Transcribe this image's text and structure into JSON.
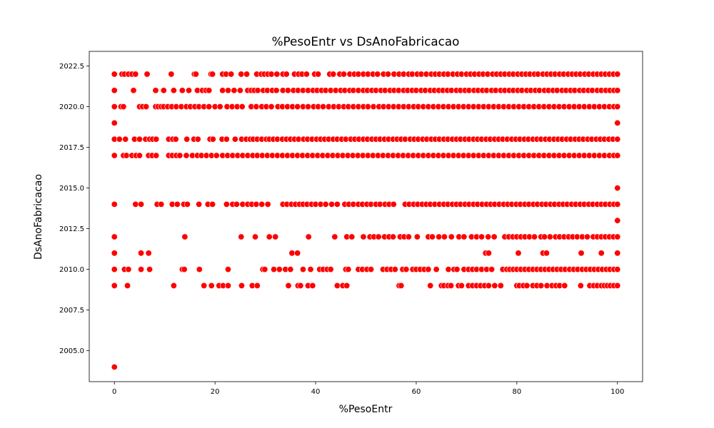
{
  "chart_data": {
    "type": "scatter",
    "title": "%PesoEntr vs DsAnoFabricacao",
    "xlabel": "%PesoEntr",
    "ylabel": "DsAnoFabricacao",
    "xlim": [
      -5,
      105
    ],
    "ylim": [
      2003.1,
      2023.4
    ],
    "xticks": [
      0,
      20,
      40,
      60,
      80,
      100
    ],
    "yticks": [
      2005.0,
      2007.5,
      2010.0,
      2012.5,
      2015.0,
      2017.5,
      2020.0,
      2022.5
    ],
    "ytick_labels": [
      "2005.0",
      "2007.5",
      "2010.0",
      "2012.5",
      "2015.0",
      "2017.5",
      "2020.0",
      "2022.5"
    ],
    "grid": false,
    "legend": "none",
    "marker_color": "#ff0000",
    "marker_edge": "#ffffff",
    "series": [
      {
        "values": [
          {
            "y": 2022,
            "x": [
              0,
              1.5,
              2,
              2.8,
              3.5,
              4.2,
              6.5,
              11.3,
              15.9,
              16.2,
              19.2,
              19.5,
              21.5,
              22.2,
              23.2,
              25.2,
              26.3,
              28.3,
              29.2,
              29.8,
              30.5,
              31.2,
              32.3,
              33.5,
              34.2,
              35.8,
              36.6,
              37.3,
              38.2,
              39.8,
              40.5,
              42.8,
              43.5,
              44.8,
              45.6,
              46.8,
              47.7,
              48.5,
              49.5,
              50.4,
              51.4,
              52.3,
              53.5,
              54.4,
              55.6,
              56.6,
              57.5,
              58.5,
              59.2,
              60.2,
              61,
              62,
              63,
              63.8,
              64.6,
              65.5,
              66.3,
              67.3,
              68.2,
              69,
              70,
              70.8,
              71.6,
              72.5,
              73.3,
              74.2,
              75.2,
              76,
              76.8,
              77.6,
              78.5,
              79.3,
              80.2,
              81,
              81.8,
              82.6,
              83.5,
              84.2,
              85.2,
              86,
              86.8,
              87.6,
              88.5,
              89.3,
              90.2,
              91,
              91.8,
              92.6,
              93.5,
              94.3,
              95.2,
              96,
              96.8,
              97.6,
              98.4,
              99.2,
              100
            ]
          },
          {
            "y": 2021,
            "x": [
              0,
              3.8,
              8.2,
              9.8,
              11.8,
              13.5,
              14.8,
              16.5,
              17.5,
              18.2,
              18.8,
              21.5,
              22.6,
              23.8,
              25,
              26.5,
              27.2,
              27.8,
              28.5,
              29.6,
              30.4,
              31.4,
              32.2,
              33.5,
              34.5,
              35.6,
              36.5,
              37.5,
              38.5,
              39.5,
              40.3,
              41.2,
              42,
              43,
              44,
              45,
              45.8,
              46.8,
              47.5,
              48.5,
              49.5,
              50.3,
              51.2,
              52,
              53,
              53.8,
              54.8,
              55.6,
              56.5,
              57.5,
              58.3,
              59.2,
              60,
              61,
              61.8,
              62.8,
              63.6,
              64.5,
              65.3,
              66.2,
              67,
              68,
              68.8,
              69.7,
              70.5,
              71.5,
              72.3,
              73.2,
              74,
              75,
              75.8,
              76.8,
              77.6,
              78.5,
              79.3,
              80.2,
              81,
              82,
              82.8,
              83.7,
              84.5,
              85.5,
              86.3,
              87.2,
              88,
              89,
              89.8,
              90.7,
              91.5,
              92.5,
              93.3,
              94.2,
              95,
              96,
              96.8,
              97.7,
              98.5,
              99.3,
              100
            ]
          },
          {
            "y": 2020,
            "x": [
              0,
              1.3,
              1.8,
              5,
              5.6,
              6.3,
              8.2,
              8.7,
              9.3,
              9.8,
              10.6,
              11.4,
              12.3,
              13.3,
              14.3,
              15.1,
              16,
              16.8,
              17.8,
              18.8,
              20,
              21,
              22.4,
              23.4,
              24.4,
              25.4,
              27.2,
              28.2,
              29.3,
              30.2,
              31.2,
              32.5,
              33.4,
              34.4,
              35.4,
              36.4,
              37.5,
              38.5,
              39.6,
              40.5,
              41.5,
              42.6,
              43.6,
              44.6,
              45.6,
              46.5,
              47.5,
              48.5,
              49.5,
              50.4,
              51.5,
              52.6,
              53.5,
              54.5,
              55.5,
              56.5,
              57.5,
              58.5,
              59.5,
              60.4,
              61.4,
              62.4,
              63.4,
              64.4,
              65.4,
              66.4,
              67.4,
              68.4,
              69.4,
              70.4,
              71.4,
              72.4,
              73.4,
              74.4,
              75.4,
              76.4,
              77.4,
              78.4,
              79.4,
              80.4,
              81.4,
              82.4,
              83.4,
              84.4,
              85.4,
              86.4,
              87.4,
              88.4,
              89.4,
              90.4,
              91.4,
              92.4,
              93.4,
              94.4,
              95.4,
              96.4,
              97.4,
              98.4,
              99.3,
              100
            ]
          },
          {
            "y": 2019,
            "x": [
              0,
              100
            ]
          },
          {
            "y": 2018,
            "x": [
              0,
              1,
              2.2,
              4,
              5,
              6.2,
              7,
              7.6,
              8.3,
              10.8,
              11.6,
              12.2,
              14.4,
              15.8,
              16.6,
              19,
              19.6,
              21.4,
              22.3,
              24,
              25.3,
              26.2,
              27,
              27.6,
              28.4,
              29.3,
              30.2,
              30.8,
              31.6,
              32.4,
              33.4,
              34.2,
              35,
              35.8,
              36.6,
              37.6,
              38.4,
              39.3,
              40.2,
              41,
              41.8,
              42.6,
              43.5,
              44.3,
              45.2,
              46,
              47,
              47.8,
              48.6,
              49.5,
              50.3,
              51.2,
              52,
              52.8,
              53.7,
              54.5,
              55.4,
              56.2,
              57,
              57.8,
              58.8,
              59.6,
              60.4,
              61.3,
              62.1,
              63,
              63.8,
              64.6,
              65.5,
              66.3,
              67.2,
              68,
              68.8,
              69.7,
              70.5,
              71.4,
              72.2,
              73,
              73.9,
              74.7,
              75.6,
              76.4,
              77.2,
              78.1,
              79,
              79.8,
              80.6,
              81.5,
              82.3,
              83.2,
              84,
              84.8,
              85.7,
              86.5,
              87.4,
              88.2,
              89,
              89.9,
              90.7,
              91.6,
              92.4,
              93.2,
              94.1,
              94.9,
              95.8,
              96.6,
              97.4,
              98.3,
              99.1,
              100
            ]
          },
          {
            "y": 2017,
            "x": [
              0,
              1.8,
              2.4,
              3.5,
              4.3,
              5,
              6.8,
              7.5,
              8.3,
              10.8,
              11.5,
              12.3,
              13,
              14.3,
              15.5,
              16.5,
              17.3,
              18.3,
              19.3,
              20.3,
              21.5,
              22.5,
              23.5,
              24.5,
              25.5,
              26.5,
              27.5,
              28.4,
              29.4,
              30.4,
              31.4,
              32.4,
              33.4,
              34.4,
              35.4,
              36.4,
              37.4,
              38.4,
              39.4,
              40.4,
              41.4,
              42.4,
              43.4,
              44.4,
              45.4,
              46.4,
              47.4,
              48.4,
              49.4,
              50.4,
              51.4,
              52.4,
              53.4,
              54.4,
              55.4,
              56.4,
              57.4,
              58.4,
              59.4,
              60.4,
              61.4,
              62.4,
              63.4,
              64.4,
              65.4,
              66.4,
              67.4,
              68.4,
              69.4,
              70.4,
              71.4,
              72.4,
              73.4,
              74.4,
              75.4,
              76.4,
              77.4,
              78.4,
              79.4,
              80.4,
              81.4,
              82.4,
              83.4,
              84.4,
              85.4,
              86.4,
              87.4,
              88.4,
              89.4,
              90.4,
              91.4,
              92.4,
              93.4,
              94.4,
              95.4,
              96.4,
              97.4,
              98.4,
              99.3,
              100
            ]
          },
          {
            "y": 2015,
            "x": [
              100
            ]
          },
          {
            "y": 2014,
            "x": [
              0,
              4.2,
              5.3,
              8.5,
              9.3,
              11.5,
              12.5,
              13.8,
              14.5,
              16.8,
              18.6,
              19.5,
              22.3,
              23.5,
              24.3,
              25.5,
              26.5,
              27.3,
              28.2,
              29.3,
              30.5,
              33.5,
              34.3,
              35.2,
              36,
              36.8,
              37.5,
              38.3,
              39.2,
              40,
              41,
              42,
              43.2,
              44.3,
              45.8,
              46.6,
              47.5,
              48.5,
              49.3,
              50.2,
              51,
              52,
              52.8,
              53.8,
              54.6,
              55.5,
              57.8,
              58.6,
              59.5,
              60.3,
              61.2,
              62,
              62.8,
              63.7,
              64.6,
              65.5,
              66.3,
              67.2,
              68,
              68.8,
              69.7,
              70.5,
              71.4,
              72.2,
              73.1,
              74,
              74.8,
              75.6,
              76.5,
              77.4,
              78.2,
              79,
              79.9,
              80.7,
              81.6,
              82.4,
              83.3,
              84.1,
              85,
              85.8,
              86.7,
              87.5,
              88.4,
              89.2,
              90,
              90.9,
              91.7,
              92.6,
              93.4,
              94.3,
              95.1,
              96,
              96.8,
              97.6,
              98.5,
              99.3,
              100
            ]
          },
          {
            "y": 2013,
            "x": [
              100
            ]
          },
          {
            "y": 2012,
            "x": [
              0,
              14,
              25.2,
              28,
              30.8,
              32,
              38.6,
              43.8,
              46.2,
              47.2,
              49.5,
              50.8,
              51.6,
              52.5,
              53.7,
              54.6,
              55.4,
              56.8,
              57.6,
              58.5,
              60.2,
              62.4,
              63.2,
              64.5,
              65.6,
              67,
              68.5,
              69.5,
              71,
              72,
              73,
              74.3,
              75.5,
              77.6,
              78.4,
              79.2,
              80,
              80.8,
              81.6,
              82.5,
              83.5,
              84.8,
              85.5,
              86.6,
              87.7,
              88.5,
              89.4,
              90.3,
              91.1,
              92,
              93,
              94,
              95.2,
              96,
              96.8,
              97.6,
              98.4,
              99.2,
              100
            ]
          },
          {
            "y": 2011,
            "x": [
              0,
              5.3,
              6.8,
              35.3,
              36.4,
              73.8,
              74.4,
              80.3,
              85.2,
              85.9,
              92.8,
              96.8,
              100
            ]
          },
          {
            "y": 2010,
            "x": [
              0,
              2,
              2.8,
              5.3,
              7,
              13.5,
              13.9,
              16.9,
              22.6,
              29.5,
              29.9,
              31.7,
              32.8,
              34,
              35,
              37.5,
              39,
              40.8,
              41.5,
              42.3,
              43,
              46,
              46.5,
              48.5,
              49.3,
              50.2,
              51,
              53.4,
              54.2,
              55,
              55.8,
              57.3,
              58,
              59.3,
              60,
              60.8,
              61.6,
              62.4,
              64,
              66.4,
              67.5,
              68.1,
              69.5,
              70.4,
              71.2,
              72,
              73,
              74,
              75,
              77.2,
              78,
              78.6,
              79.3,
              80,
              80.8,
              81.6,
              82.4,
              83.2,
              84,
              84.8,
              85.6,
              86.4,
              87.2,
              88,
              88.8,
              89.6,
              90.5,
              91.3,
              92.1,
              93,
              93.8,
              94.6,
              95.4,
              96.2,
              97,
              97.8,
              98.5,
              99.3,
              100
            ]
          },
          {
            "y": 2009,
            "x": [
              0,
              2.6,
              11.8,
              17.8,
              19.3,
              20.8,
              21.6,
              22.6,
              25.3,
              27.4,
              28.4,
              34.6,
              36.5,
              37,
              38.5,
              39.4,
              44.3,
              45.4,
              46.2,
              56.6,
              57,
              62.8,
              65,
              65.5,
              66.3,
              66.9,
              68.4,
              69,
              70.4,
              71.2,
              72,
              72.8,
              73.6,
              74.4,
              75.6,
              76.8,
              80,
              80.5,
              81.3,
              82,
              83.2,
              84,
              84.8,
              86,
              87,
              87.8,
              88.5,
              89.5,
              92.7,
              94.5,
              95.3,
              96,
              96.8,
              97.4,
              98,
              98.6,
              99.3,
              100
            ]
          },
          {
            "y": 2004,
            "x": [
              0
            ]
          }
        ]
      }
    ]
  }
}
